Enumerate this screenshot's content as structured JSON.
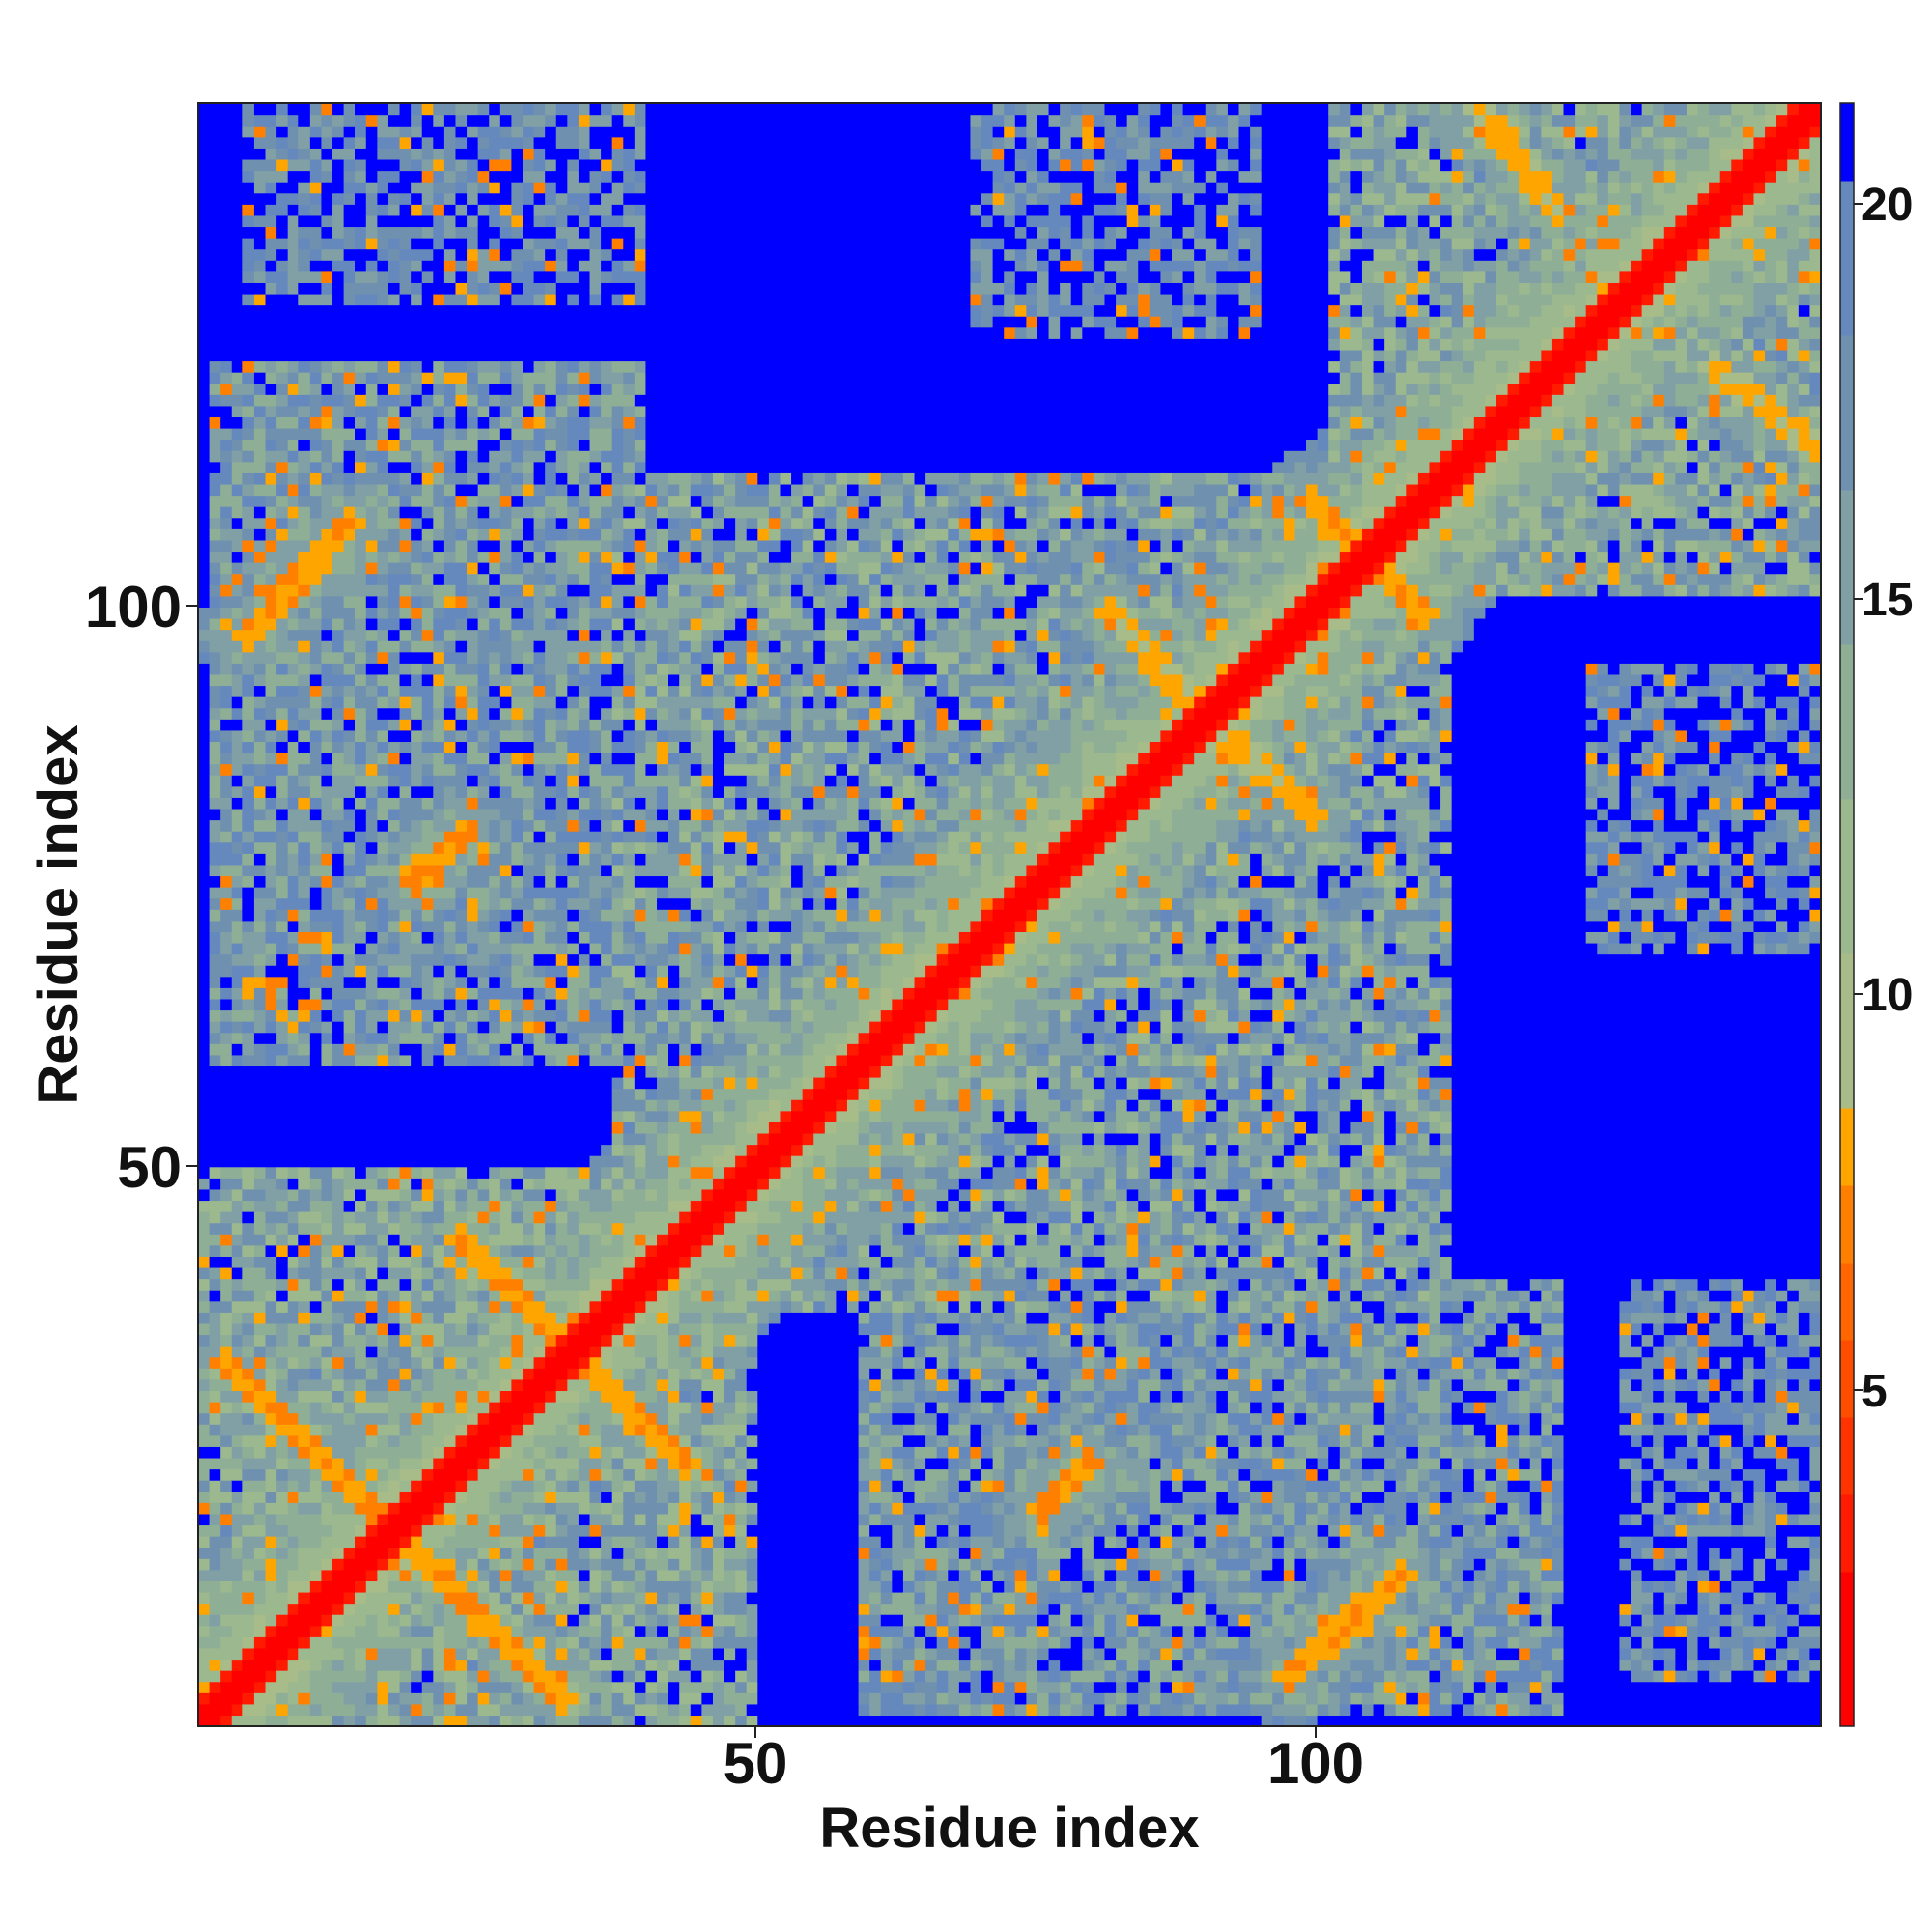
{
  "chart_data": {
    "type": "heatmap",
    "title": "",
    "xlabel": "Residue index",
    "ylabel": "Residue index",
    "n_residues": 145,
    "xlim": [
      1,
      145
    ],
    "ylim": [
      1,
      145
    ],
    "x_ticks": [
      "50",
      "100"
    ],
    "y_ticks": [
      "50",
      "100"
    ],
    "colorbar": {
      "range": [
        0,
        21
      ],
      "tick_labels": [
        "5",
        "10",
        "15",
        "20"
      ],
      "bands": [
        {
          "max": 2,
          "color": "#ff0000"
        },
        {
          "max": 3,
          "color": "#ff1a00"
        },
        {
          "max": 4,
          "color": "#ff3300"
        },
        {
          "max": 5,
          "color": "#ff4d00"
        },
        {
          "max": 6,
          "color": "#ff6600"
        },
        {
          "max": 7,
          "color": "#ff8000"
        },
        {
          "max": 8,
          "color": "#ffa500"
        },
        {
          "max": 10,
          "color": "#a8bc8a"
        },
        {
          "max": 12,
          "color": "#9cb88f"
        },
        {
          "max": 14,
          "color": "#8fae96"
        },
        {
          "max": 16,
          "color": "#80a0a6"
        },
        {
          "max": 18,
          "color": "#7090b0"
        },
        {
          "max": 20,
          "color": "#6589bd"
        },
        {
          "max": 21,
          "color": "#0000ff"
        }
      ]
    },
    "description_of_values": "Pairwise residue distance map (Angstrom-like units). Diagonal is red (~1-3), beta-sheet style cross bands orange (5-8), clustered regions blue-grey (10-20), distant pairs saturated blue (>20).",
    "features": {
      "diagonal_width": 2.2,
      "cross_bands": [
        {
          "from": [
            3,
            33
          ],
          "to": [
            33,
            3
          ],
          "value": 6.5
        },
        {
          "from": [
            24,
            44
          ],
          "to": [
            44,
            24
          ],
          "value": 6.5
        },
        {
          "from": [
            100,
            110
          ],
          "to": [
            110,
            100
          ],
          "value": 6.5
        },
        {
          "from": [
            5,
            98
          ],
          "to": [
            14,
            108
          ],
          "value": 6.5
        },
        {
          "from": [
            20,
            76
          ],
          "to": [
            24,
            80
          ],
          "value": 6.0
        },
        {
          "from": [
            88,
            93
          ],
          "to": [
            100,
            82
          ],
          "value": 7.0
        },
        {
          "from": [
            114,
            146
          ],
          "to": [
            122,
            136
          ],
          "value": 7.0
        }
      ],
      "domains": [
        {
          "x": [
            1,
            50
          ],
          "y": [
            1,
            50
          ],
          "value": 14
        },
        {
          "x": [
            38,
            110
          ],
          "y": [
            40,
            112
          ],
          "value": 15
        },
        {
          "x": [
            102,
            145
          ],
          "y": [
            102,
            145
          ],
          "value": 14
        },
        {
          "x": [
            2,
            40
          ],
          "y": [
            60,
            115
          ],
          "value": 16
        },
        {
          "x": [
            60,
            122
          ],
          "y": [
            2,
            40
          ],
          "value": 16
        },
        {
          "x": [
            70,
            95
          ],
          "y": [
            125,
            145
          ],
          "value": 18
        },
        {
          "x": [
            5,
            40
          ],
          "y": [
            128,
            145
          ],
          "value": 18
        }
      ]
    }
  }
}
